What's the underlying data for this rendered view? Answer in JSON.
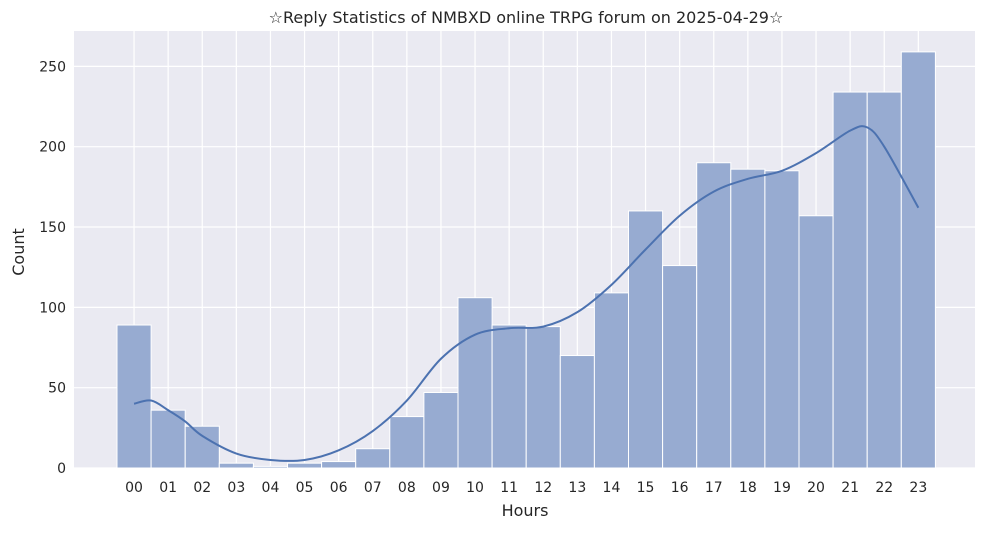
{
  "chart_data": {
    "type": "bar",
    "title": "☆Reply Statistics of NMBXD online TRPG forum on 2025-04-29☆",
    "xlabel": "Hours",
    "ylabel": "Count",
    "categories": [
      "00",
      "01",
      "02",
      "03",
      "04",
      "05",
      "06",
      "07",
      "08",
      "09",
      "10",
      "11",
      "12",
      "13",
      "14",
      "15",
      "16",
      "17",
      "18",
      "19",
      "20",
      "21",
      "22",
      "23"
    ],
    "values": [
      89,
      36,
      26,
      3,
      1,
      3,
      4,
      12,
      32,
      47,
      106,
      89,
      88,
      70,
      109,
      160,
      126,
      190,
      186,
      185,
      157,
      234,
      234,
      259
    ],
    "kde_curve": {
      "x": [
        0,
        0.5,
        1,
        1.5,
        2,
        3,
        4,
        5,
        6,
        7,
        8,
        9,
        10,
        11,
        12,
        13,
        14,
        15,
        16,
        17,
        18,
        19,
        20,
        21,
        21.5,
        22,
        23
      ],
      "y": [
        40,
        42,
        36,
        29,
        20,
        9,
        5,
        5,
        11,
        23,
        42,
        68,
        83,
        87,
        88,
        97,
        114,
        136,
        157,
        172,
        180,
        185,
        196,
        210,
        212,
        200,
        162
      ]
    },
    "yticks": [
      0,
      50,
      100,
      150,
      200,
      250
    ],
    "ylim": [
      0,
      272
    ],
    "grid": true,
    "colors": {
      "bar_fill": "#97abd1",
      "bar_edge": "#ffffff",
      "kde_line": "#4c72b0",
      "axes_bg": "#eaeaf2",
      "grid": "#ffffff"
    }
  }
}
